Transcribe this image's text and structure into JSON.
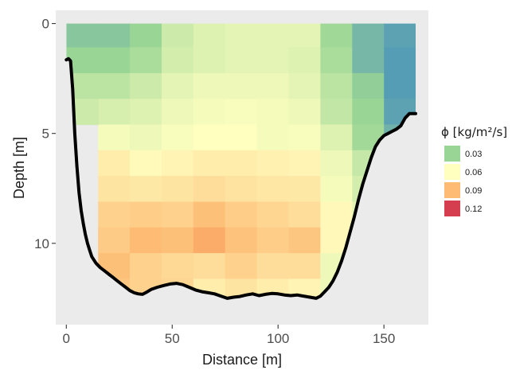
{
  "chart_data": {
    "type": "heatmap",
    "xlabel": "Distance [m]",
    "ylabel": "Depth [m]",
    "xlim": [
      -5,
      171
    ],
    "ylim": [
      13.7,
      -0.6
    ],
    "y_reversed": true,
    "xticks": [
      0,
      50,
      100,
      150
    ],
    "yticks": [
      0,
      5,
      10
    ],
    "grid": false,
    "panel_background": "#ebebeb",
    "cell_width": 15,
    "cell_height": 1.17,
    "x_centers": [
      22.5,
      37.5,
      52.5,
      67.5,
      82.5,
      97.5,
      112.5,
      127.5,
      142.5,
      157.5
    ],
    "y_centers": [
      0.5,
      1.67,
      2.84,
      4.01,
      5.18,
      6.35,
      7.52,
      8.69,
      9.86,
      11.03,
      12.2
    ],
    "values": [
      [
        0.025,
        0.03,
        0.045,
        0.05,
        0.052,
        0.052,
        0.052,
        0.032,
        0.02,
        0.012
      ],
      [
        0.03,
        0.035,
        0.047,
        0.05,
        0.052,
        0.052,
        0.05,
        0.035,
        0.02,
        0.01
      ],
      [
        0.04,
        0.045,
        0.052,
        0.055,
        0.055,
        0.055,
        0.052,
        0.04,
        0.028,
        0.01
      ],
      [
        0.048,
        0.05,
        0.055,
        0.057,
        0.058,
        0.057,
        0.055,
        0.042,
        0.03,
        0.012
      ],
      [
        0.057,
        0.055,
        0.058,
        0.06,
        0.06,
        0.057,
        0.058,
        0.05,
        0.033,
        0.018
      ],
      [
        0.068,
        0.062,
        0.065,
        0.068,
        0.068,
        0.066,
        0.065,
        0.055,
        0.043,
        0.025
      ],
      [
        0.072,
        0.07,
        0.072,
        0.075,
        0.073,
        0.071,
        0.07,
        0.057,
        0.047,
        0.03
      ],
      [
        0.08,
        0.082,
        0.08,
        0.088,
        0.082,
        0.078,
        0.075,
        0.063,
        0.052,
        0.04
      ],
      [
        0.083,
        0.09,
        0.088,
        0.095,
        0.087,
        0.082,
        0.085,
        0.063,
        0.05,
        0.045
      ],
      [
        0.088,
        0.08,
        0.077,
        0.075,
        0.08,
        0.075,
        0.075,
        0.055,
        0.045,
        0.045
      ],
      [
        0.085,
        0.08,
        0.078,
        0.068,
        0.072,
        0.068,
        0.065,
        0.055,
        0.045,
        0.045
      ]
    ],
    "extra_cells": [
      {
        "x": 7.5,
        "y": 0.5,
        "value": 0.025
      },
      {
        "x": 7.5,
        "y": 1.67,
        "value": 0.03
      },
      {
        "x": 7.5,
        "y": 2.84,
        "value": 0.04
      },
      {
        "x": 7.5,
        "y": 4.01,
        "value": 0.045
      }
    ],
    "boundary": [
      [
        0,
        1.65
      ],
      [
        1,
        1.6
      ],
      [
        2,
        1.7
      ],
      [
        3,
        3.0
      ],
      [
        4,
        5.0
      ],
      [
        5,
        6.5
      ],
      [
        6,
        7.7
      ],
      [
        7,
        8.5
      ],
      [
        8,
        9.1
      ],
      [
        9,
        9.6
      ],
      [
        10,
        10.0
      ],
      [
        11,
        10.3
      ],
      [
        12,
        10.6
      ],
      [
        14,
        10.9
      ],
      [
        16,
        11.1
      ],
      [
        18,
        11.25
      ],
      [
        20,
        11.4
      ],
      [
        22,
        11.55
      ],
      [
        24,
        11.7
      ],
      [
        26,
        11.85
      ],
      [
        28,
        12.0
      ],
      [
        30,
        12.15
      ],
      [
        32,
        12.25
      ],
      [
        34,
        12.3
      ],
      [
        36,
        12.32
      ],
      [
        38,
        12.22
      ],
      [
        40,
        12.1
      ],
      [
        43,
        12.0
      ],
      [
        46,
        11.92
      ],
      [
        49,
        11.85
      ],
      [
        52,
        11.82
      ],
      [
        55,
        11.88
      ],
      [
        58,
        12.0
      ],
      [
        61,
        12.12
      ],
      [
        64,
        12.2
      ],
      [
        67,
        12.25
      ],
      [
        70,
        12.3
      ],
      [
        73,
        12.4
      ],
      [
        76,
        12.5
      ],
      [
        79,
        12.45
      ],
      [
        82,
        12.42
      ],
      [
        85,
        12.35
      ],
      [
        88,
        12.3
      ],
      [
        91,
        12.38
      ],
      [
        94,
        12.32
      ],
      [
        97,
        12.28
      ],
      [
        100,
        12.3
      ],
      [
        103,
        12.35
      ],
      [
        106,
        12.38
      ],
      [
        109,
        12.35
      ],
      [
        112,
        12.4
      ],
      [
        115,
        12.45
      ],
      [
        118,
        12.5
      ],
      [
        120,
        12.4
      ],
      [
        122,
        12.2
      ],
      [
        124,
        12.0
      ],
      [
        126,
        11.7
      ],
      [
        128,
        11.3
      ],
      [
        130,
        10.8
      ],
      [
        132,
        10.2
      ],
      [
        134,
        9.5
      ],
      [
        136,
        8.8
      ],
      [
        138,
        8.0
      ],
      [
        140,
        7.3
      ],
      [
        142,
        6.7
      ],
      [
        144,
        6.1
      ],
      [
        146,
        5.6
      ],
      [
        148,
        5.3
      ],
      [
        150,
        5.1
      ],
      [
        152,
        5.0
      ],
      [
        154,
        4.9
      ],
      [
        156,
        4.8
      ],
      [
        158,
        4.65
      ],
      [
        160,
        4.3
      ],
      [
        162,
        4.1
      ],
      [
        164,
        4.1
      ],
      [
        165,
        4.1
      ]
    ],
    "legend": {
      "title": "ϕ [kg/m²/s]",
      "placement": "right",
      "entries": [
        {
          "label": "0.03",
          "value": 0.03,
          "color": "#99d594"
        },
        {
          "label": "0.06",
          "value": 0.06,
          "color": "#ffffbf"
        },
        {
          "label": "0.09",
          "value": 0.09,
          "color": "#fdbb74"
        },
        {
          "label": "0.12",
          "value": 0.12,
          "color": "#d53e4f"
        }
      ]
    },
    "colorscale": [
      {
        "v": 0.0,
        "color": "#3288bd"
      },
      {
        "v": 0.015,
        "color": "#66a8b0"
      },
      {
        "v": 0.03,
        "color": "#99d594"
      },
      {
        "v": 0.06,
        "color": "#ffffbf"
      },
      {
        "v": 0.09,
        "color": "#fdbb74"
      },
      {
        "v": 0.105,
        "color": "#f88d52"
      },
      {
        "v": 0.12,
        "color": "#d53e4f"
      }
    ]
  }
}
